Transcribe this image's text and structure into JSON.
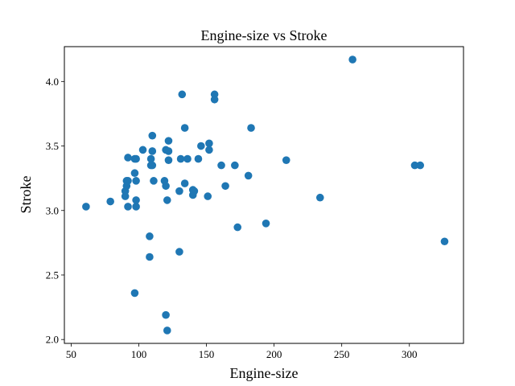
{
  "chart_data": {
    "type": "scatter",
    "title": "Engine-size vs Stroke",
    "xlabel": "Engine-size",
    "ylabel": "Stroke",
    "xlim": [
      45,
      340
    ],
    "ylim": [
      1.97,
      4.27
    ],
    "xticks": [
      50,
      100,
      150,
      200,
      250,
      300
    ],
    "yticks": [
      2.0,
      2.5,
      3.0,
      3.5,
      4.0
    ],
    "ytick_labels": [
      "2.0",
      "2.5",
      "3.0",
      "3.5",
      "4.0"
    ],
    "grid": false,
    "color": "#1f77b4",
    "points": [
      [
        61,
        3.03
      ],
      [
        79,
        3.07
      ],
      [
        90,
        3.11
      ],
      [
        90,
        3.15
      ],
      [
        91,
        3.23
      ],
      [
        92,
        3.23
      ],
      [
        92,
        3.41
      ],
      [
        92,
        3.03
      ],
      [
        91,
        3.19
      ],
      [
        97,
        3.29
      ],
      [
        97,
        3.4
      ],
      [
        98,
        3.4
      ],
      [
        98,
        3.23
      ],
      [
        98,
        3.08
      ],
      [
        98,
        3.03
      ],
      [
        97,
        2.36
      ],
      [
        103,
        3.47
      ],
      [
        108,
        2.8
      ],
      [
        108,
        2.64
      ],
      [
        109,
        3.4
      ],
      [
        109,
        3.35
      ],
      [
        110,
        3.58
      ],
      [
        110,
        3.46
      ],
      [
        110,
        3.35
      ],
      [
        111,
        3.23
      ],
      [
        119,
        3.23
      ],
      [
        120,
        3.47
      ],
      [
        120,
        3.19
      ],
      [
        120,
        2.19
      ],
      [
        121,
        2.07
      ],
      [
        121,
        3.08
      ],
      [
        122,
        3.54
      ],
      [
        122,
        3.46
      ],
      [
        122,
        3.39
      ],
      [
        130,
        3.15
      ],
      [
        130,
        2.68
      ],
      [
        131,
        3.4
      ],
      [
        132,
        3.9
      ],
      [
        134,
        3.64
      ],
      [
        134,
        3.21
      ],
      [
        136,
        3.4
      ],
      [
        140,
        3.16
      ],
      [
        140,
        3.12
      ],
      [
        141,
        3.15
      ],
      [
        144,
        3.4
      ],
      [
        146,
        3.5
      ],
      [
        151,
        3.11
      ],
      [
        152,
        3.52
      ],
      [
        152,
        3.47
      ],
      [
        156,
        3.9
      ],
      [
        156,
        3.86
      ],
      [
        161,
        3.35
      ],
      [
        164,
        3.19
      ],
      [
        171,
        3.35
      ],
      [
        173,
        2.87
      ],
      [
        181,
        3.27
      ],
      [
        183,
        3.64
      ],
      [
        194,
        2.9
      ],
      [
        209,
        3.39
      ],
      [
        234,
        3.1
      ],
      [
        258,
        4.17
      ],
      [
        304,
        3.35
      ],
      [
        308,
        3.35
      ],
      [
        326,
        2.76
      ]
    ]
  }
}
